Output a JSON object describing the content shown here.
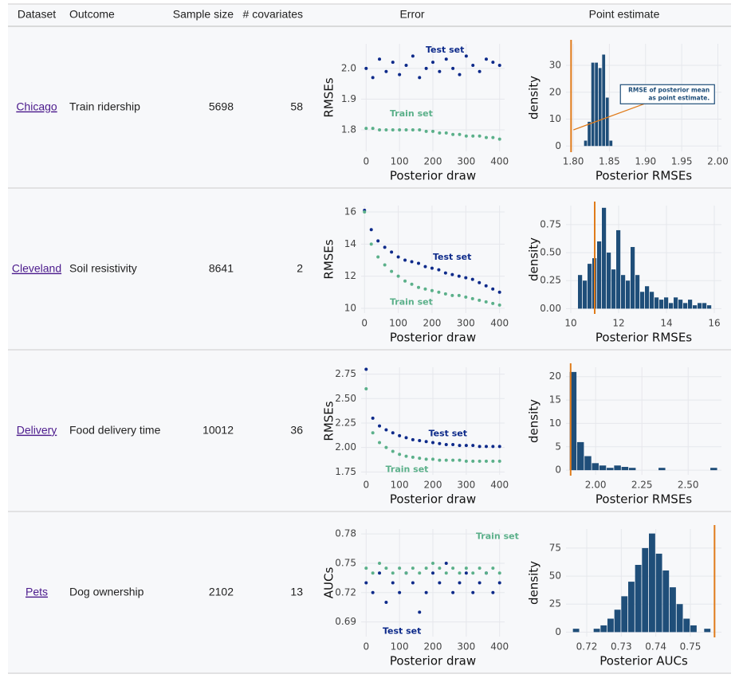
{
  "table": {
    "header": [
      "Dataset",
      "Outcome",
      "Sample size",
      "# covariates",
      "Error",
      "Point estimate"
    ],
    "rows": [
      [
        "Chicago",
        "Train ridership",
        5698,
        58
      ],
      [
        "Cleveland",
        "Soil resistivity",
        8641,
        2
      ],
      [
        "Delivery",
        "Food delivery time",
        10012,
        36
      ],
      [
        "Pets",
        "Dog ownership",
        2102,
        13
      ]
    ]
  },
  "chart_data": [
    {
      "type": "scatter",
      "xlabel": "Posterior draw",
      "ylabel": "RMSEs",
      "x": [
        0,
        20,
        40,
        60,
        80,
        100,
        120,
        140,
        160,
        180,
        200,
        220,
        240,
        260,
        280,
        300,
        320,
        340,
        360,
        380,
        400
      ],
      "series": [
        {
          "name": "Test set",
          "color": "#0d2a8a",
          "values": [
            2.0,
            1.97,
            2.03,
            1.99,
            2.02,
            1.98,
            2.01,
            2.04,
            1.97,
            2.0,
            2.02,
            1.99,
            2.03,
            2.0,
            1.98,
            2.04,
            2.01,
            1.99,
            2.03,
            2.02,
            2.01
          ]
        },
        {
          "name": "Train set",
          "color": "#5bb08a",
          "values": [
            1.805,
            1.805,
            1.8,
            1.8,
            1.8,
            1.8,
            1.8,
            1.8,
            1.8,
            1.795,
            1.795,
            1.79,
            1.79,
            1.785,
            1.785,
            1.78,
            1.78,
            1.78,
            1.775,
            1.775,
            1.77
          ]
        }
      ],
      "xlim": [
        -15,
        415
      ],
      "ylim": [
        1.73,
        2.08
      ],
      "xticks": [
        0,
        100,
        200,
        300,
        400
      ],
      "yticks": [
        1.8,
        1.9,
        {
          "value": 2,
          "label": "2.0"
        }
      ],
      "grid": true
    },
    {
      "type": "histogram",
      "xlabel": "Posterior RMSEs",
      "ylabel": "density",
      "color": "#1f4e79",
      "bins": [
        1.815,
        1.82,
        1.825,
        1.83,
        1.835,
        1.84,
        1.845,
        1.85,
        1.855
      ],
      "counts": [
        2,
        9,
        31,
        31,
        29,
        34,
        18,
        2
      ],
      "point_estimate": 1.797,
      "point_estimate_color": "#e07b1a",
      "annotation": [
        "RMSE of posterior mean",
        "as point estimate."
      ],
      "xlim": [
        1.79,
        2.005
      ],
      "ylim": [
        -2,
        38
      ],
      "xticks": [
        {
          "value": 1.8,
          "label": "1.80"
        },
        1.85,
        {
          "value": 1.9,
          "label": "1.90"
        },
        1.95,
        {
          "value": 2,
          "label": "2.00"
        }
      ],
      "yticks": [
        0,
        10,
        20,
        30
      ],
      "grid": true
    },
    {
      "type": "scatter",
      "xlabel": "Posterior draw",
      "ylabel": "RMSEs",
      "x": [
        0,
        20,
        40,
        60,
        80,
        100,
        120,
        140,
        160,
        180,
        200,
        220,
        240,
        260,
        280,
        300,
        320,
        340,
        360,
        380,
        400
      ],
      "series": [
        {
          "name": "Test set",
          "color": "#0d2a8a",
          "values": [
            16.1,
            14.9,
            14.2,
            13.8,
            13.5,
            13.2,
            13.0,
            12.9,
            12.8,
            12.6,
            12.5,
            12.4,
            12.2,
            12.1,
            12.0,
            11.9,
            11.8,
            11.6,
            11.4,
            11.2,
            11.0
          ]
        },
        {
          "name": "Train set",
          "color": "#5bb08a",
          "values": [
            16.0,
            14.0,
            13.2,
            12.7,
            12.3,
            12.0,
            11.7,
            11.5,
            11.3,
            11.2,
            11.1,
            11.0,
            10.9,
            10.8,
            10.8,
            10.7,
            10.6,
            10.5,
            10.4,
            10.3,
            10.2
          ]
        }
      ],
      "xlim": [
        -10,
        415
      ],
      "ylim": [
        9.7,
        16.4
      ],
      "xticks": [
        0,
        100,
        200,
        300,
        400
      ],
      "yticks": [
        10,
        12,
        14,
        16
      ],
      "grid": true
    },
    {
      "type": "histogram",
      "xlabel": "Posterior RMSEs",
      "ylabel": "density",
      "color": "#1f4e79",
      "bins": [
        10.3,
        10.5,
        10.7,
        10.9,
        11.1,
        11.3,
        11.5,
        11.7,
        11.9,
        12.1,
        12.3,
        12.5,
        12.7,
        12.9,
        13.1,
        13.3,
        13.5,
        13.7,
        13.9,
        14.1,
        14.3,
        14.5,
        14.7,
        14.9,
        15.1,
        15.3,
        15.5,
        15.7,
        15.9
      ],
      "counts": [
        0.3,
        0.25,
        0.4,
        0.45,
        0.6,
        0.9,
        0.5,
        0.35,
        0.7,
        0.3,
        0.25,
        0.55,
        0.3,
        0.15,
        0.2,
        0.15,
        0.1,
        0.08,
        0.1,
        0.05,
        0.1,
        0.08,
        0.05,
        0.08,
        0.03,
        0.05,
        0.05,
        0.03
      ],
      "point_estimate": 11.0,
      "point_estimate_color": "#e07b1a",
      "xlim": [
        9.8,
        16.3
      ],
      "ylim": [
        -0.04,
        0.92
      ],
      "xticks": [
        10,
        12,
        14,
        16
      ],
      "yticks": [
        {
          "value": 0,
          "label": "0.00"
        },
        0.25,
        {
          "value": 0.5,
          "label": "0.50"
        },
        0.75
      ],
      "grid": true
    },
    {
      "type": "scatter",
      "xlabel": "Posterior draw",
      "ylabel": "RMSEs",
      "x": [
        0,
        20,
        40,
        60,
        80,
        100,
        120,
        140,
        160,
        180,
        200,
        220,
        240,
        260,
        280,
        300,
        320,
        340,
        360,
        380,
        400
      ],
      "series": [
        {
          "name": "Test set",
          "color": "#0d2a8a",
          "values": [
            2.8,
            2.3,
            2.22,
            2.18,
            2.15,
            2.12,
            2.1,
            2.08,
            2.07,
            2.06,
            2.05,
            2.04,
            2.03,
            2.03,
            2.02,
            2.02,
            2.02,
            2.01,
            2.01,
            2.01,
            2.01
          ]
        },
        {
          "name": "Train set",
          "color": "#5bb08a",
          "values": [
            2.6,
            2.15,
            2.05,
            2.0,
            1.96,
            1.93,
            1.91,
            1.9,
            1.89,
            1.88,
            1.88,
            1.87,
            1.87,
            1.87,
            1.87,
            1.86,
            1.86,
            1.86,
            1.86,
            1.86,
            1.86
          ]
        }
      ],
      "xlim": [
        -15,
        415
      ],
      "ylim": [
        1.72,
        2.82
      ],
      "xticks": [
        0,
        100,
        200,
        300,
        400
      ],
      "yticks": [
        1.75,
        {
          "value": 2,
          "label": "2.00"
        },
        2.25,
        {
          "value": 2.5,
          "label": "2.50"
        },
        2.75
      ],
      "grid": true
    },
    {
      "type": "histogram",
      "xlabel": "Posterior RMSEs",
      "ylabel": "density",
      "color": "#1f4e79",
      "bins": [
        1.86,
        1.9,
        1.94,
        1.98,
        2.02,
        2.06,
        2.1,
        2.14,
        2.18,
        2.22,
        2.26,
        2.3,
        2.34,
        2.38,
        2.42,
        2.46,
        2.5,
        2.54,
        2.58,
        2.62,
        2.66
      ],
      "counts": [
        21,
        6,
        3,
        1.5,
        1,
        0.5,
        1,
        0.7,
        0.5,
        0,
        0,
        0,
        0.5,
        0,
        0,
        0,
        0,
        0,
        0,
        0.5
      ],
      "point_estimate": 1.865,
      "point_estimate_color": "#e07b1a",
      "xlim": [
        1.84,
        2.68
      ],
      "ylim": [
        -1,
        22
      ],
      "xticks": [
        {
          "value": 2,
          "label": "2.00"
        },
        2.25,
        {
          "value": 2.5,
          "label": "2.50"
        }
      ],
      "yticks": [
        0,
        5,
        10,
        15,
        20
      ],
      "grid": true
    },
    {
      "type": "scatter",
      "xlabel": "Posterior draw",
      "ylabel": "AUCs",
      "x": [
        0,
        20,
        40,
        60,
        80,
        100,
        120,
        140,
        160,
        180,
        200,
        220,
        240,
        260,
        280,
        300,
        320,
        340,
        360,
        380,
        400
      ],
      "series": [
        {
          "name": "Test set",
          "color": "#0d2a8a",
          "values": [
            0.73,
            0.72,
            0.74,
            0.71,
            0.73,
            0.72,
            0.74,
            0.73,
            0.7,
            0.72,
            0.74,
            0.73,
            0.75,
            0.72,
            0.73,
            0.74,
            0.72,
            0.73,
            0.74,
            0.72,
            0.73
          ]
        },
        {
          "name": "Train set",
          "color": "#5bb08a",
          "values": [
            0.745,
            0.74,
            0.75,
            0.745,
            0.74,
            0.745,
            0.74,
            0.745,
            0.74,
            0.745,
            0.75,
            0.745,
            0.74,
            0.745,
            0.74,
            0.745,
            0.74,
            0.745,
            0.74,
            0.745,
            0.74
          ]
        }
      ],
      "xlim": [
        -15,
        415
      ],
      "ylim": [
        0.675,
        0.785
      ],
      "xticks": [
        0,
        100,
        200,
        300,
        400
      ],
      "yticks": [
        0.69,
        0.72,
        0.75,
        0.78
      ],
      "grid": true
    },
    {
      "type": "histogram",
      "xlabel": "Posterior AUCs",
      "ylabel": "density",
      "color": "#1f4e79",
      "bins": [
        0.716,
        0.718,
        0.72,
        0.722,
        0.724,
        0.726,
        0.728,
        0.73,
        0.732,
        0.734,
        0.736,
        0.738,
        0.74,
        0.742,
        0.744,
        0.746,
        0.748,
        0.75,
        0.752,
        0.754,
        0.756
      ],
      "counts": [
        3,
        0,
        0,
        3,
        6,
        12,
        20,
        32,
        45,
        60,
        75,
        88,
        70,
        55,
        40,
        25,
        12,
        6,
        0,
        3
      ],
      "point_estimate": 0.757,
      "point_estimate_color": "#e07b1a",
      "xlim": [
        0.714,
        0.759
      ],
      "ylim": [
        -4,
        92
      ],
      "xticks": [
        0.72,
        0.73,
        0.74,
        0.75
      ],
      "yticks": [
        0,
        25,
        50,
        75
      ],
      "grid": true
    }
  ]
}
